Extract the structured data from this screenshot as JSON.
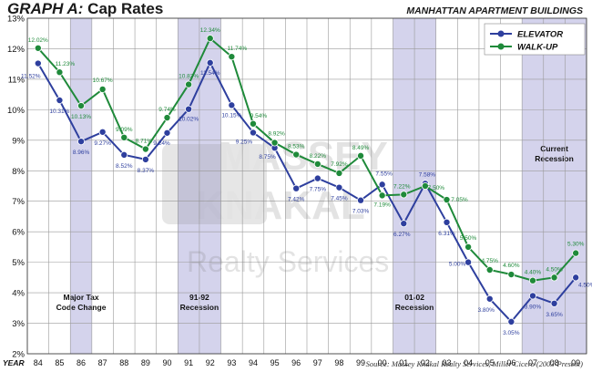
{
  "title_prefix": "GRAPH A:",
  "title_main": "Cap Rates",
  "subtitle": "MANHATTAN APARTMENT BUILDINGS",
  "source": "Source: Massey Knakal Realty Services, Miller Cicero (2003-Present)",
  "watermark": {
    "line1": "MASSEY",
    "line2": "KNAKAL",
    "line3": "Realty Services"
  },
  "chart_data": {
    "type": "line",
    "xlabel": "YEAR",
    "ylabel": "",
    "ylim": [
      2,
      13
    ],
    "yticks": [
      "2%",
      "3%",
      "4%",
      "5%",
      "6%",
      "7%",
      "8%",
      "9%",
      "10%",
      "11%",
      "12%",
      "13%"
    ],
    "categories": [
      "84",
      "85",
      "86",
      "87",
      "88",
      "89",
      "90",
      "91",
      "92",
      "93",
      "94",
      "95",
      "96",
      "97",
      "98",
      "99",
      "00",
      "01",
      "02",
      "03",
      "04",
      "05",
      "06",
      "07",
      "08",
      "09"
    ],
    "grid": true,
    "legend_position": "top-right",
    "series": [
      {
        "name": "ELEVATOR",
        "color": "#2e3f9e",
        "values": [
          11.52,
          10.31,
          8.96,
          9.27,
          8.52,
          8.37,
          9.24,
          10.02,
          11.54,
          10.15,
          9.25,
          8.75,
          7.42,
          7.75,
          7.45,
          7.03,
          7.55,
          6.27,
          7.58,
          6.31,
          5.0,
          3.8,
          3.05,
          3.9,
          3.65,
          4.5
        ],
        "labels": [
          "11.52%",
          "10.31%",
          "8.96%",
          "9.27%",
          "8.52%",
          "8.37%",
          "9.24%",
          "10.02%",
          "11.54%",
          "10.15%",
          "9.25%",
          "8.75%",
          "7.42%",
          "7.75%",
          "7.45%",
          "7.03%",
          "7.55%",
          "6.27%",
          "7.58%",
          "6.31%",
          "5.00%",
          "3.80%",
          "3.05%",
          "3.90%",
          "3.65%",
          "4.50%"
        ]
      },
      {
        "name": "WALK-UP",
        "color": "#1f8a3a",
        "values": [
          12.02,
          11.23,
          10.13,
          10.67,
          9.09,
          8.71,
          9.74,
          10.83,
          12.34,
          11.74,
          9.54,
          8.92,
          8.53,
          8.22,
          7.92,
          8.49,
          7.19,
          7.22,
          7.5,
          7.05,
          5.5,
          4.75,
          4.6,
          4.4,
          4.5,
          5.3
        ],
        "labels": [
          "12.02%",
          "11.23%",
          "10.13%",
          "10.67%",
          "9.09%",
          "8.71%",
          "9.74%",
          "10.83%",
          "12.34%",
          "11.74%",
          "9.54%",
          "8.92%",
          "8.53%",
          "8.22%",
          "7.92%",
          "8.49%",
          "7.19%",
          "7.22%",
          "7.50%",
          "7.05%",
          "5.50%",
          "4.75%",
          "4.60%",
          "4.40%",
          "4.50%",
          "5.30%"
        ]
      }
    ],
    "shaded_periods": [
      {
        "from": "86",
        "to": "86",
        "label1": "Major Tax",
        "label2": "Code Change"
      },
      {
        "from": "91",
        "to": "92",
        "label1": "91-92",
        "label2": "Recession"
      },
      {
        "from": "01",
        "to": "02",
        "label1": "01-02",
        "label2": "Recession"
      },
      {
        "from": "07",
        "to": "09",
        "label1": "Current",
        "label2": "Recession"
      }
    ]
  },
  "colors": {
    "shade": "#d4d3ec",
    "grid": "#9a9a9a",
    "axis": "#333333"
  }
}
